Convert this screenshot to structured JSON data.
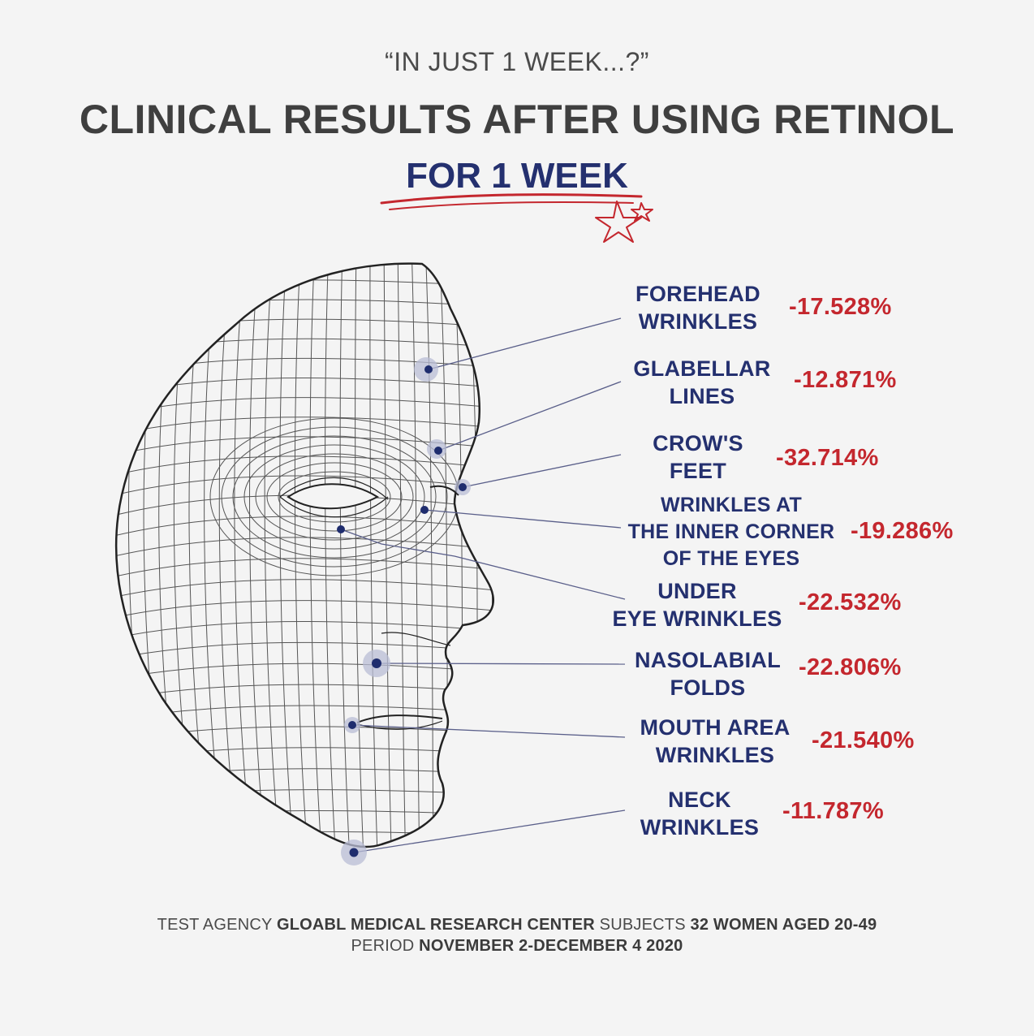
{
  "header": {
    "quote": "“IN JUST 1 WEEK...?”",
    "title": "CLINICAL RESULTS AFTER USING RETINOL",
    "subtitle": "FOR 1 WEEK"
  },
  "results": [
    {
      "label_lines": [
        "FOREHEAD",
        "WRINKLES"
      ],
      "value": "-17.528%"
    },
    {
      "label_lines": [
        "GLABELLAR",
        "LINES"
      ],
      "value": "-12.871%"
    },
    {
      "label_lines": [
        "CROW'S",
        "FEET"
      ],
      "value": "-32.714%"
    },
    {
      "label_lines": [
        "WRINKLES AT",
        "THE INNER CORNER",
        "OF THE EYES"
      ],
      "value": "-19.286%"
    },
    {
      "label_lines": [
        "UNDER",
        "EYE WRINKLES"
      ],
      "value": "-22.532%"
    },
    {
      "label_lines": [
        "NASOLABIAL",
        "FOLDS"
      ],
      "value": "-22.806%"
    },
    {
      "label_lines": [
        "MOUTH AREA",
        "WRINKLES"
      ],
      "value": "-21.540%"
    },
    {
      "label_lines": [
        "NECK",
        "WRINKLES"
      ],
      "value": "-11.787%"
    }
  ],
  "footer": {
    "agency_label": "TEST AGENCY",
    "agency_value": "GLOABL MEDICAL RESEARCH CENTER",
    "subjects_label": "SUBJECTS",
    "subjects_value": "32 WOMEN AGED 20-49",
    "period_label": "PERIOD",
    "period_value": "NOVEMBER 2-DECEMBER 4 2020"
  },
  "colors": {
    "navy": "#24306f",
    "red": "#c4272e",
    "grey_text": "#3f3f3f",
    "background": "#f4f4f4"
  }
}
